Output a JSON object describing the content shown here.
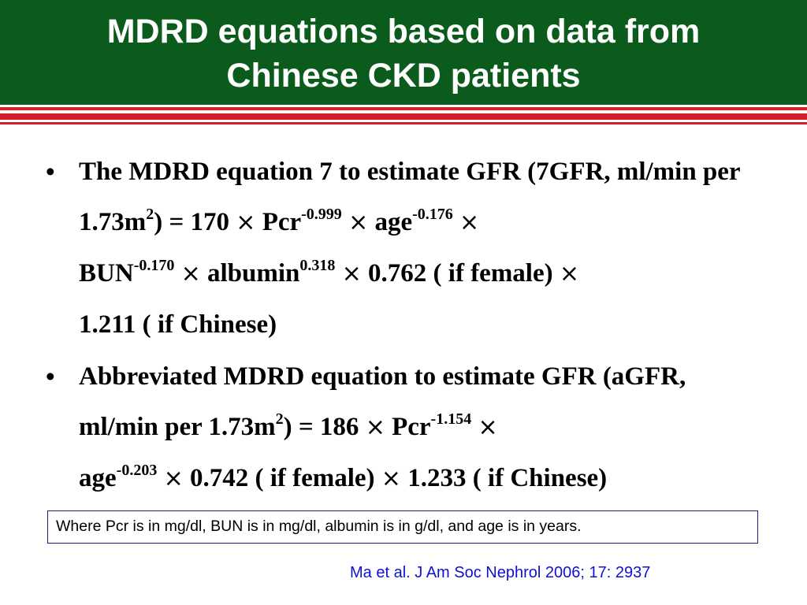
{
  "title": {
    "line1": "MDRD equations based on data from",
    "line2": "Chinese CKD patients"
  },
  "colors": {
    "title_bar": "#0b5c1c",
    "stripes": "#d42028",
    "citation": "#1010d0",
    "note_border": "#1c1c80"
  },
  "bullet_symbol": "•",
  "times_symbol": "×",
  "bullets": [
    {
      "parts": {
        "t1": "The MDRD equation 7 to estimate GFR (7GFR, ml/min per 1.73m",
        "s1": "2",
        "t2": ") = 170 ",
        "t3": " Pcr",
        "s2": "-0.999",
        "t4": " age",
        "s3": "-0.176",
        "t5": "BUN",
        "s4": "-0.170",
        "t6": " albumin",
        "s5": "0.318",
        "t7": " 0.762 ( if female) ",
        "t8": "1.211 ( if Chinese)"
      }
    },
    {
      "parts": {
        "t1": "Abbreviated MDRD equation to estimate GFR (aGFR, ml/min per 1.73m",
        "s1": "2",
        "t2": ") = 186 ",
        "t3": " Pcr",
        "s2": "-1.154",
        "t4": "age",
        "s3": "-0.203",
        "t5": " 0.742 ( if female) ",
        "t6": " 1.233 ( if Chinese)"
      }
    }
  ],
  "note": "Where Pcr is in mg/dl, BUN is in mg/dl, albumin is in g/dl, and age is in years.",
  "citation": "Ma et al. J Am Soc Nephrol 2006; 17: 2937"
}
